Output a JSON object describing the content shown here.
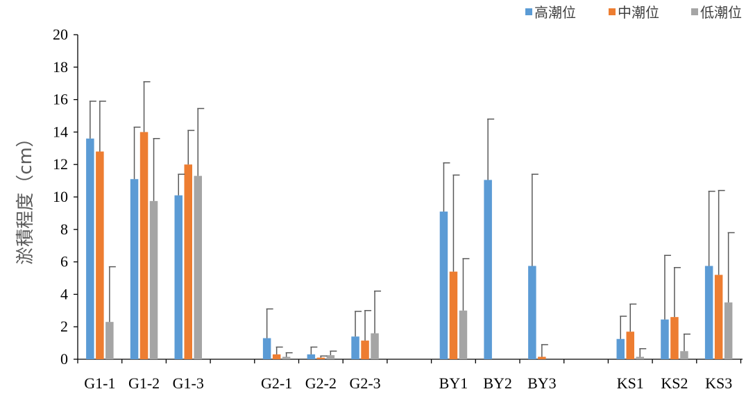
{
  "chart_data": {
    "type": "bar",
    "ylabel": "淤積程度（cm）",
    "ylim": [
      0,
      20
    ],
    "ytick_step": 2,
    "grid": false,
    "legend_position": "top-right",
    "groups": [
      [
        "G1-1",
        "G1-2",
        "G1-3"
      ],
      [
        "G2-1",
        "G2-2",
        "G2-3"
      ],
      [
        "BY1",
        "BY2",
        "BY3"
      ],
      [
        "KS1",
        "KS2",
        "KS3"
      ]
    ],
    "categories": [
      "G1-1",
      "G1-2",
      "G1-3",
      "G2-1",
      "G2-2",
      "G2-3",
      "BY1",
      "BY2",
      "BY3",
      "KS1",
      "KS2",
      "KS3"
    ],
    "series": [
      {
        "name": "高潮位",
        "color": "#5B9BD5",
        "values": [
          13.6,
          11.1,
          10.1,
          1.3,
          0.3,
          1.4,
          9.1,
          11.05,
          5.75,
          1.25,
          2.45,
          5.75
        ],
        "errors": [
          2.3,
          3.2,
          1.3,
          1.8,
          0.45,
          1.55,
          3.0,
          3.75,
          5.65,
          1.4,
          3.95,
          4.6
        ]
      },
      {
        "name": "中潮位",
        "color": "#ED7D31",
        "values": [
          12.8,
          14.0,
          12.0,
          0.3,
          0.1,
          1.15,
          5.4,
          null,
          0.15,
          1.7,
          2.6,
          5.2
        ],
        "errors": [
          3.1,
          3.1,
          2.1,
          0.45,
          0.1,
          1.85,
          5.95,
          null,
          0.75,
          1.7,
          3.05,
          5.2
        ]
      },
      {
        "name": "低潮位",
        "color": "#A5A5A5",
        "values": [
          2.3,
          9.75,
          11.3,
          0.15,
          0.25,
          1.6,
          3.0,
          null,
          null,
          0.15,
          0.5,
          3.5
        ],
        "errors": [
          3.4,
          3.85,
          4.15,
          0.25,
          0.25,
          2.6,
          3.2,
          null,
          null,
          0.5,
          1.05,
          4.3
        ]
      }
    ]
  }
}
